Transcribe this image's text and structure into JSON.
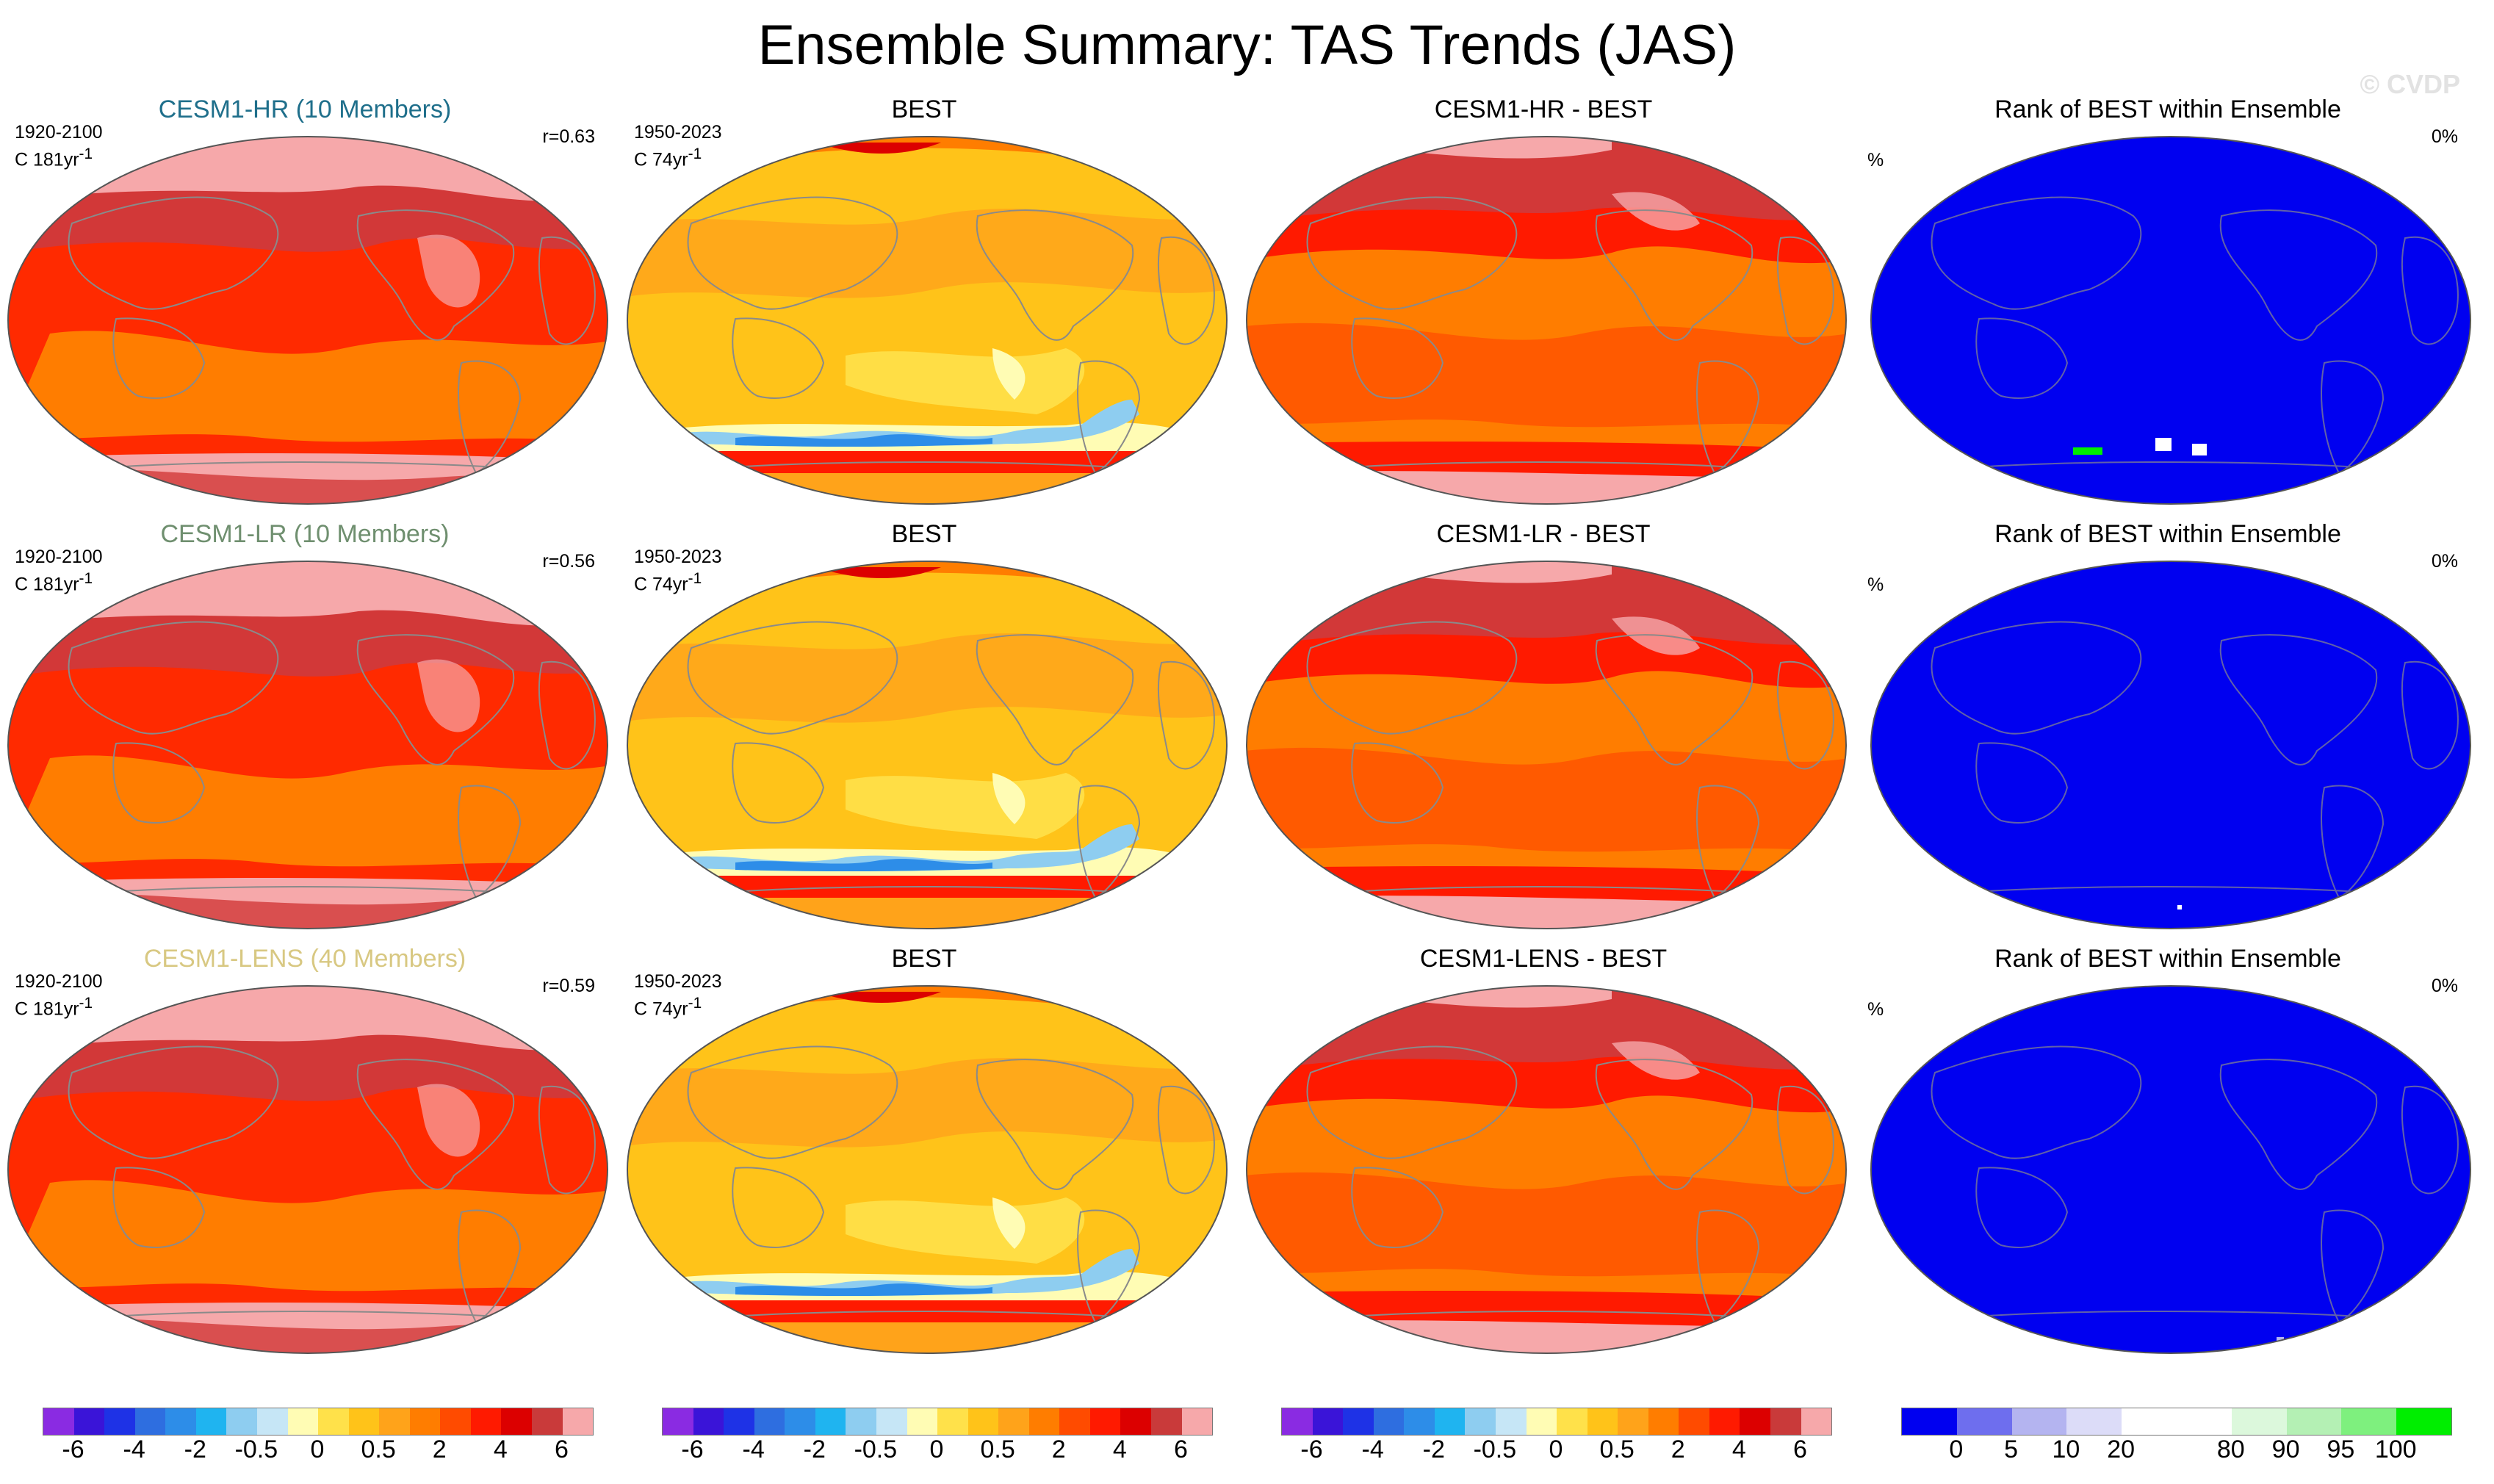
{
  "title": "Ensemble Summary: TAS Trends (JAS)",
  "watermark": "© CVDP",
  "rows": [
    {
      "model": {
        "title": "CESM1-HR (10 Members)",
        "title_color": "#1f6f8b",
        "period": "1920-2100",
        "units": "C 181yr",
        "corr": "r=0.63"
      },
      "obs": {
        "title": "BEST",
        "period": "1950-2023",
        "units": "C 74yr"
      },
      "diff": {
        "title": "CESM1-HR - BEST"
      },
      "rank": {
        "title": "Rank of BEST within Ensemble",
        "pct_label": "%",
        "pct_value": "0%"
      }
    },
    {
      "model": {
        "title": "CESM1-LR (10 Members)",
        "title_color": "#6f8f6f",
        "period": "1920-2100",
        "units": "C 181yr",
        "corr": "r=0.56"
      },
      "obs": {
        "title": "BEST",
        "period": "1950-2023",
        "units": "C 74yr"
      },
      "diff": {
        "title": "CESM1-LR - BEST"
      },
      "rank": {
        "title": "Rank of BEST within Ensemble",
        "pct_label": "%",
        "pct_value": "0%"
      }
    },
    {
      "model": {
        "title": "CESM1-LENS (40 Members)",
        "title_color": "#d8c882",
        "period": "1920-2100",
        "units": "C 181yr",
        "corr": "r=0.59"
      },
      "obs": {
        "title": "BEST",
        "period": "1950-2023",
        "units": "C 74yr"
      },
      "diff": {
        "title": "CESM1-LENS - BEST"
      },
      "rank": {
        "title": "Rank of BEST within Ensemble",
        "pct_label": "%",
        "pct_value": "0%"
      }
    }
  ],
  "units_exponent": "-1",
  "colorbar_trend": {
    "colors": [
      "#8a2be2",
      "#3a14d8",
      "#1e32e6",
      "#2e6ee0",
      "#2d8de8",
      "#1fb4f0",
      "#8ecdf0",
      "#c6e6f6",
      "#fffcb4",
      "#ffe14a",
      "#ffc319",
      "#ffa31a",
      "#ff7d00",
      "#ff4b00",
      "#ff1a00",
      "#dc0000",
      "#c93a3a",
      "#f6a8aa"
    ],
    "ticks": [
      "-6",
      "-4",
      "-2",
      "-0.5",
      "0",
      "0.5",
      "2",
      "4",
      "6"
    ]
  },
  "colorbar_rank": {
    "colors": [
      "#0000f0",
      "#6e6eee",
      "#b4b4f0",
      "#dcdcf8",
      "#ffffff",
      "#ffffff",
      "#dcf8dc",
      "#b4f0b4",
      "#7ef07e",
      "#00ee00"
    ],
    "ticks": [
      "0",
      "5",
      "10",
      "20",
      "80",
      "90",
      "95",
      "100"
    ]
  }
}
